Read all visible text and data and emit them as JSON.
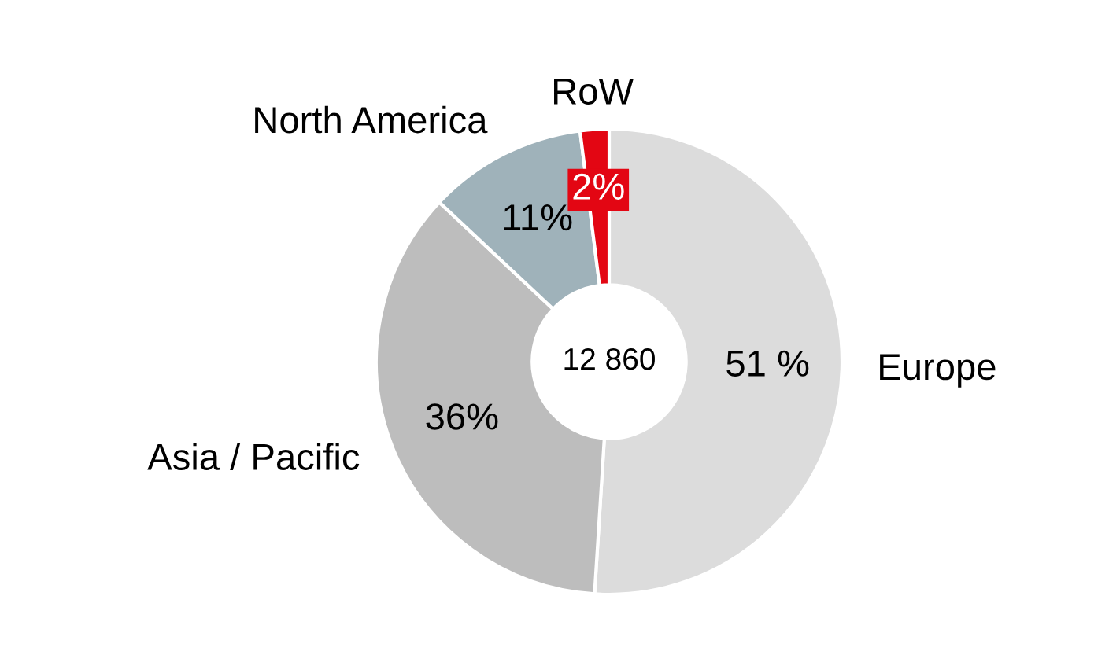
{
  "chart_data": {
    "type": "donut",
    "categories": [
      "Europe",
      "Asia / Pacific",
      "North America",
      "RoW"
    ],
    "values": [
      51,
      36,
      11,
      2
    ],
    "value_labels": [
      "51 %",
      "36%",
      "11%",
      "2%"
    ],
    "colors": [
      "#dcdcdc",
      "#bdbdbd",
      "#9fb2ba",
      "#e30613"
    ],
    "annotations": [
      "12 860"
    ],
    "legend": false
  }
}
